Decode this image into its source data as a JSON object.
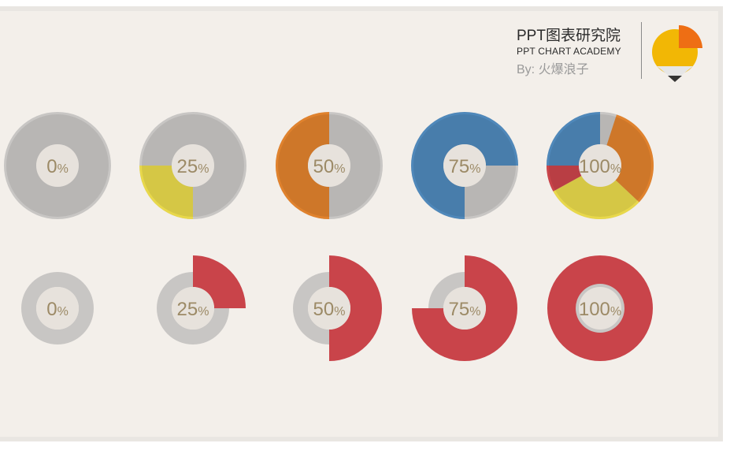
{
  "brand": {
    "title": "PPT图表研究院",
    "subtitle": "PPT CHART ACADEMY",
    "byline": "By: 火爆浪子",
    "logo_icon": "pie-pencil-icon",
    "logo_colors": {
      "body": "#f2b705",
      "slice": "#ee6e14",
      "tip": "#e6e6e6",
      "lead": "#333333"
    }
  },
  "colors": {
    "track": "#c8c6c4",
    "track_dark": "#b6b3b0",
    "hole": "#e7e2dc",
    "percent_text": "#9c8a66"
  },
  "chart_data": [
    {
      "type": "donut",
      "style": "multi-color progress",
      "charts": [
        {
          "label": "0",
          "unit": "%",
          "value": 0,
          "segments": []
        },
        {
          "label": "25",
          "unit": "%",
          "value": 25,
          "segments": [
            {
              "from": 50,
              "to": 75,
              "color": "#e8d84b"
            }
          ]
        },
        {
          "label": "50",
          "unit": "%",
          "value": 50,
          "segments": [
            {
              "from": 50,
              "to": 100,
              "color": "#e0822d"
            }
          ]
        },
        {
          "label": "75",
          "unit": "%",
          "value": 75,
          "segments": [
            {
              "from": 50,
              "to": 125,
              "color": "#4f88ba"
            }
          ]
        },
        {
          "label": "100",
          "unit": "%",
          "value": 100,
          "segments": [
            {
              "from": 0,
              "to": 5,
              "color": "#c8c6c4"
            },
            {
              "from": 5,
              "to": 37,
              "color": "#e0822d"
            },
            {
              "from": 37,
              "to": 67,
              "color": "#e8d84b"
            },
            {
              "from": 67,
              "to": 75,
              "color": "#c9444a"
            },
            {
              "from": 75,
              "to": 100,
              "color": "#4f88ba"
            }
          ]
        }
      ]
    },
    {
      "type": "donut",
      "style": "expanding-radius progress",
      "color": "#c9444a",
      "charts": [
        {
          "label": "0",
          "unit": "%",
          "value": 0
        },
        {
          "label": "25",
          "unit": "%",
          "value": 25
        },
        {
          "label": "50",
          "unit": "%",
          "value": 50
        },
        {
          "label": "75",
          "unit": "%",
          "value": 75
        },
        {
          "label": "100",
          "unit": "%",
          "value": 100
        }
      ]
    }
  ]
}
